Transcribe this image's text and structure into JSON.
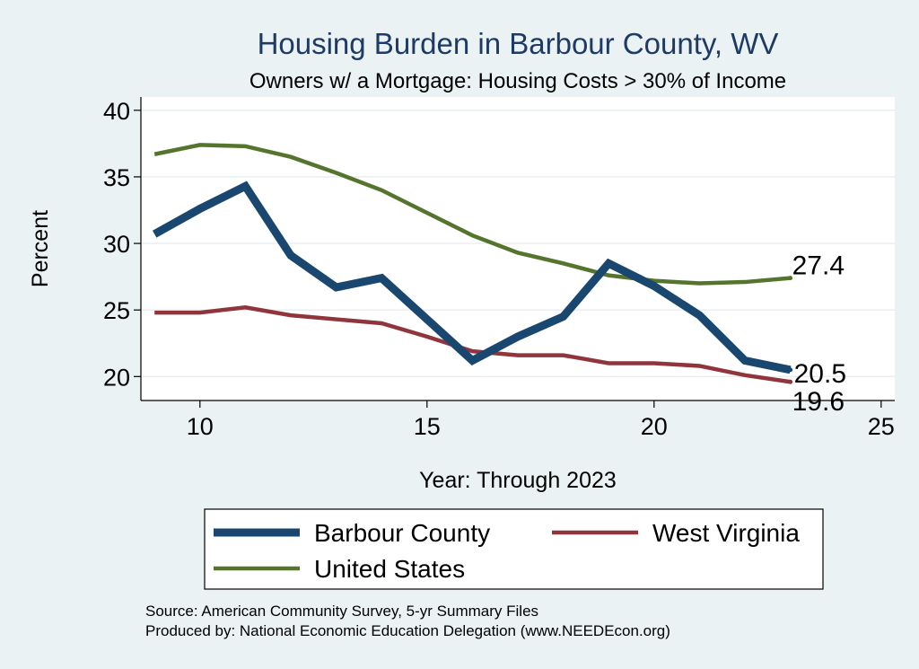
{
  "chart_data": {
    "type": "line",
    "title": "Housing Burden in Barbour County, WV",
    "subtitle": "Owners w/ a Mortgage: Housing Costs > 30% of Income",
    "xlabel": "Year: Through 2023",
    "ylabel": "Percent",
    "xlim": [
      8.7,
      25.3
    ],
    "ylim": [
      18.2,
      41.0
    ],
    "xticks": [
      10,
      15,
      20,
      25
    ],
    "yticks": [
      20,
      25,
      30,
      35,
      40
    ],
    "grid": true,
    "legend_position": "bottom",
    "x": [
      9,
      10,
      11,
      12,
      13,
      14,
      15,
      16,
      17,
      18,
      19,
      20,
      21,
      22,
      23
    ],
    "series": [
      {
        "name": "Barbour County",
        "color": "#1a476f",
        "values": [
          30.7,
          32.6,
          34.3,
          29.1,
          26.7,
          27.4,
          24.3,
          21.2,
          23.0,
          24.5,
          28.5,
          26.8,
          24.6,
          21.2,
          20.5
        ],
        "end_label": "20.5"
      },
      {
        "name": "West Virginia",
        "color": "#90353b",
        "values": [
          24.8,
          24.8,
          25.2,
          24.6,
          24.3,
          24.0,
          23.0,
          21.9,
          21.6,
          21.6,
          21.0,
          21.0,
          20.8,
          20.1,
          19.6
        ],
        "end_label": "19.6"
      },
      {
        "name": "United States",
        "color": "#55752f",
        "values": [
          36.7,
          37.4,
          37.3,
          36.5,
          35.3,
          34.0,
          32.3,
          30.6,
          29.3,
          28.5,
          27.6,
          27.2,
          27.0,
          27.1,
          27.4
        ],
        "end_label": "27.4"
      }
    ],
    "notes": [
      "Source: American Community Survey, 5-yr Summary Files",
      "Produced by: National Economic Education Delegation (www.NEEDEcon.org)"
    ]
  }
}
